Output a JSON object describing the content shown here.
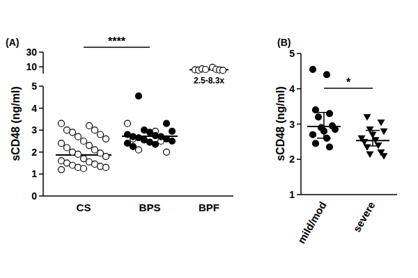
{
  "chart_data": [
    {
      "type": "scatter",
      "title": "(A)",
      "y_label": "sCD48 (ng/ml)",
      "categories": [
        "CS",
        "BPS",
        "BPF"
      ],
      "ylim": [
        0,
        5
      ],
      "yticks": [
        0,
        1,
        2,
        3,
        4,
        5
      ],
      "series": [
        {
          "marker": "circle-open",
          "values": [
            [
              3.3,
              3.2,
              3.0,
              3.0,
              2.9,
              2.8,
              2.7,
              2.6,
              2.5,
              2.4,
              2.3,
              2.2,
              2.1,
              2.0,
              1.95,
              1.9,
              1.8,
              1.7,
              1.6,
              1.55,
              1.5,
              1.45,
              1.4,
              1.35,
              1.3,
              1.3,
              1.25,
              1.2
            ],
            [
              3.3,
              2.95,
              2.6,
              2.5,
              2.1,
              2.0
            ],
            []
          ]
        },
        {
          "marker": "circle-filled",
          "values": [
            [],
            [
              4.55,
              3.3,
              3.0,
              2.95,
              2.9,
              2.8,
              2.75,
              2.7,
              2.7,
              2.65,
              2.6,
              2.55,
              2.5,
              2.45,
              2.4,
              2.35,
              2.25
            ],
            []
          ]
        }
      ],
      "median": [
        1.87,
        2.72,
        null
      ],
      "annotation": "****"
    },
    {
      "type": "scatter",
      "categories": [
        null,
        null,
        null
      ],
      "tick_labels": "y",
      "log": "y",
      "ylim": [
        6,
        30
      ],
      "yticks": [
        10,
        30
      ],
      "series": [
        {
          "marker": "circle-open",
          "values": [
            [],
            [],
            [
              8.0,
              9.6,
              7.8,
              8.3,
              8.6,
              7.9,
              8.2,
              7.7
            ]
          ]
        }
      ],
      "median": [
        null,
        null,
        8.1
      ],
      "annotation": "2.5-8.3x"
    },
    {
      "type": "scatter",
      "title": "(B)",
      "y_label": "sCD48 (ng/ml)",
      "categories": [
        "mild/mod",
        "severe"
      ],
      "ylim": [
        1,
        5
      ],
      "yticks": [
        1,
        2,
        3,
        4,
        5
      ],
      "series": [
        {
          "marker": "circle-filled",
          "values": [
            [
              4.55,
              4.4,
              3.4,
              3.3,
              3.2,
              2.95,
              2.9,
              2.85,
              2.8,
              2.7,
              2.6,
              2.45,
              2.35
            ],
            []
          ]
        },
        {
          "marker": "triangle-down",
          "values": [
            [],
            [
              3.2,
              3.05,
              2.85,
              2.8,
              2.7,
              2.6,
              2.55,
              2.5,
              2.4,
              2.35,
              2.2,
              2.15,
              2.1
            ]
          ]
        }
      ],
      "median": [
        2.93,
        2.53
      ],
      "error_low": [
        2.6,
        2.38
      ],
      "error_high": [
        3.33,
        2.82
      ],
      "annotation": "*"
    }
  ]
}
